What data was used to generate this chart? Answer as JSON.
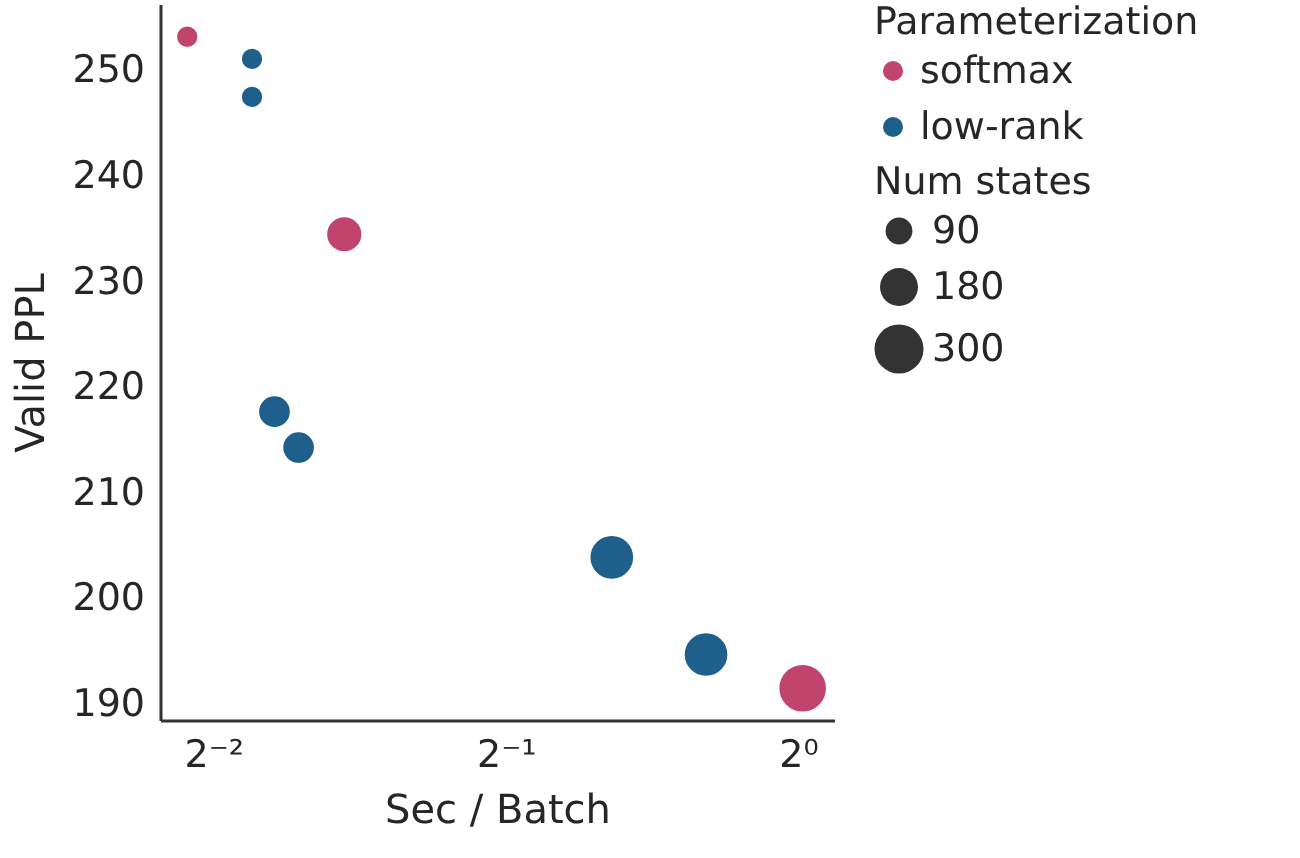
{
  "chart_data": {
    "type": "bubble",
    "xlabel": "Sec / Batch",
    "ylabel": "Valid PPL",
    "legend_title": "Parameterization",
    "log": "x",
    "xlim": [
      0.2203,
      1.089
    ],
    "xticks": [
      {
        "value": 0.25,
        "label": "2⁻²"
      },
      {
        "value": 0.5,
        "label": "2⁻¹"
      },
      {
        "value": 1,
        "label": "2⁰"
      }
    ],
    "ylim": [
      188.4,
      256.2
    ],
    "yticks": [
      190,
      200,
      210,
      220,
      230,
      240,
      250
    ],
    "annotations": [
      "Num states"
    ],
    "size_legend": [
      90,
      180,
      300
    ],
    "series": [
      {
        "name": "softmax",
        "color": "#c0446b",
        "x": [
          0.235,
          0.341,
          1.011
        ],
        "values": [
          253.1,
          234.4,
          191.4
        ],
        "sizes": [
          60,
          160,
          290
        ]
      },
      {
        "name": "low-rank",
        "color": "#1f5f8b",
        "x": [
          0.274,
          0.274,
          0.289,
          0.306,
          0.643,
          0.804
        ],
        "values": [
          251.0,
          247.4,
          217.6,
          214.2,
          203.8,
          194.6
        ],
        "sizes": [
          60,
          60,
          130,
          130,
          245,
          245
        ]
      }
    ],
    "grid": false,
    "legend": "right",
    "marker": "circle"
  }
}
